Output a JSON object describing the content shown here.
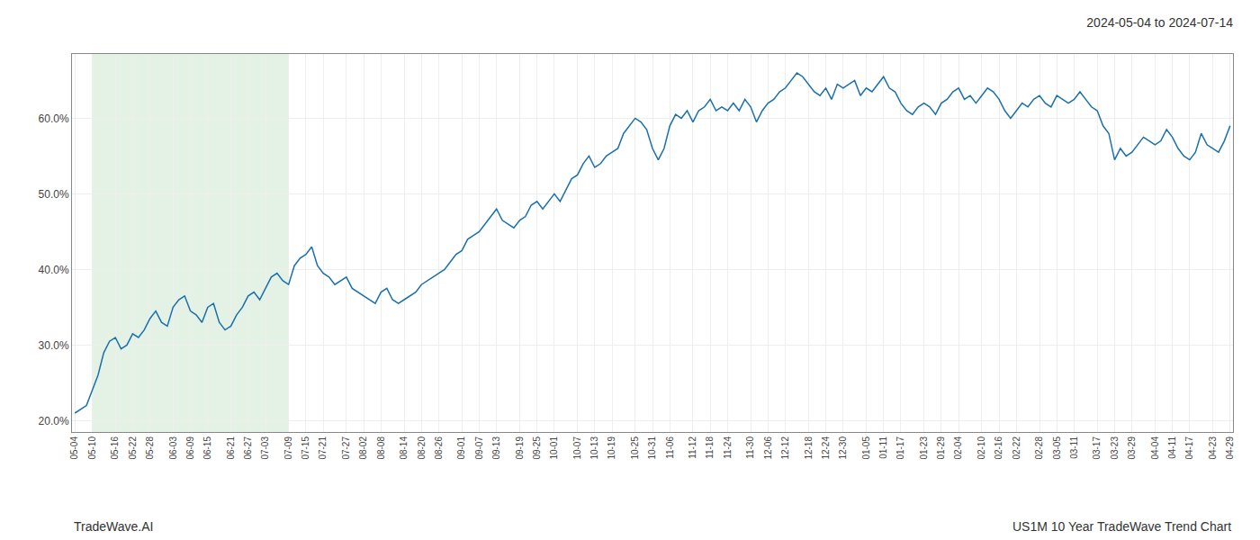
{
  "chart_data": {
    "type": "line",
    "title": "2024-05-04 to 2024-07-14",
    "annotations": [
      "TradeWave.AI",
      "US1M 10 Year TradeWave Trend Chart"
    ],
    "categories": [
      "05-04",
      null,
      null,
      "05-10",
      null,
      null,
      null,
      "05-16",
      null,
      null,
      "05-22",
      null,
      null,
      "05-28",
      null,
      null,
      null,
      "06-03",
      null,
      null,
      "06-09",
      null,
      null,
      "06-15",
      null,
      null,
      null,
      "06-21",
      null,
      null,
      "06-27",
      null,
      null,
      "07-03",
      null,
      null,
      null,
      "07-09",
      null,
      null,
      "07-15",
      null,
      null,
      "07-21",
      null,
      null,
      null,
      "07-27",
      null,
      null,
      "08-02",
      null,
      null,
      "08-08",
      null,
      null,
      null,
      "08-14",
      null,
      null,
      "08-20",
      null,
      null,
      "08-26",
      null,
      null,
      null,
      "09-01",
      null,
      null,
      "09-07",
      null,
      null,
      "09-13",
      null,
      null,
      null,
      "09-19",
      null,
      null,
      "09-25",
      null,
      null,
      "10-01",
      null,
      null,
      null,
      "10-07",
      null,
      null,
      "10-13",
      null,
      null,
      "10-19",
      null,
      null,
      null,
      "10-25",
      null,
      null,
      "10-31",
      null,
      null,
      "11-06",
      null,
      null,
      null,
      "11-12",
      null,
      null,
      "11-18",
      null,
      null,
      "11-24",
      null,
      null,
      null,
      "11-30",
      null,
      null,
      "12-06",
      null,
      null,
      "12-12",
      null,
      null,
      null,
      "12-18",
      null,
      null,
      "12-24",
      null,
      null,
      "12-30",
      null,
      null,
      null,
      "01-05",
      null,
      null,
      "01-11",
      null,
      null,
      "01-17",
      null,
      null,
      null,
      "01-23",
      null,
      null,
      "01-29",
      null,
      null,
      "02-04",
      null,
      null,
      null,
      "02-10",
      null,
      null,
      "02-16",
      null,
      null,
      "02-22",
      null,
      null,
      null,
      "02-28",
      null,
      null,
      "03-05",
      null,
      null,
      "03-11",
      null,
      null,
      null,
      "03-17",
      null,
      null,
      "03-23",
      null,
      null,
      "03-29",
      null,
      null,
      null,
      "04-04",
      null,
      null,
      "04-11",
      null,
      null,
      "04-17",
      null,
      null,
      null,
      "04-23",
      null,
      null,
      "04-29"
    ],
    "series": [
      {
        "color": "#1a6faf",
        "values": [
          0.21,
          0.215,
          0.22,
          0.24,
          0.26,
          0.29,
          0.305,
          0.31,
          0.295,
          0.3,
          0.315,
          0.31,
          0.32,
          0.335,
          0.345,
          0.33,
          0.325,
          0.35,
          0.36,
          0.365,
          0.345,
          0.34,
          0.33,
          0.35,
          0.355,
          0.33,
          0.32,
          0.325,
          0.34,
          0.35,
          0.365,
          0.37,
          0.36,
          0.375,
          0.39,
          0.395,
          0.385,
          0.38,
          0.405,
          0.415,
          0.42,
          0.43,
          0.405,
          0.395,
          0.39,
          0.38,
          0.385,
          0.39,
          0.375,
          0.37,
          0.365,
          0.36,
          0.355,
          0.37,
          0.375,
          0.36,
          0.355,
          0.36,
          0.365,
          0.37,
          0.38,
          0.385,
          0.39,
          0.395,
          0.4,
          0.41,
          0.42,
          0.425,
          0.44,
          0.445,
          0.45,
          0.46,
          0.47,
          0.48,
          0.465,
          0.46,
          0.455,
          0.465,
          0.47,
          0.485,
          0.49,
          0.48,
          0.49,
          0.5,
          0.49,
          0.505,
          0.52,
          0.525,
          0.54,
          0.55,
          0.535,
          0.54,
          0.55,
          0.555,
          0.56,
          0.58,
          0.59,
          0.6,
          0.595,
          0.585,
          0.56,
          0.545,
          0.56,
          0.59,
          0.605,
          0.6,
          0.61,
          0.595,
          0.61,
          0.615,
          0.625,
          0.61,
          0.615,
          0.61,
          0.62,
          0.61,
          0.625,
          0.615,
          0.595,
          0.61,
          0.62,
          0.625,
          0.635,
          0.64,
          0.65,
          0.66,
          0.655,
          0.645,
          0.635,
          0.63,
          0.64,
          0.625,
          0.645,
          0.64,
          0.645,
          0.65,
          0.63,
          0.64,
          0.635,
          0.645,
          0.655,
          0.64,
          0.635,
          0.62,
          0.61,
          0.605,
          0.615,
          0.62,
          0.615,
          0.605,
          0.62,
          0.625,
          0.635,
          0.64,
          0.625,
          0.63,
          0.62,
          0.63,
          0.64,
          0.635,
          0.625,
          0.61,
          0.6,
          0.61,
          0.62,
          0.615,
          0.625,
          0.63,
          0.62,
          0.615,
          0.63,
          0.625,
          0.62,
          0.625,
          0.635,
          0.625,
          0.615,
          0.61,
          0.59,
          0.58,
          0.545,
          0.56,
          0.55,
          0.555,
          0.565,
          0.575,
          0.57,
          0.565,
          0.57,
          0.585,
          0.575,
          0.56,
          0.55,
          0.545,
          0.555,
          0.58,
          0.565,
          0.56,
          0.555,
          0.57,
          0.59
        ]
      }
    ],
    "shade": {
      "from": "05-10",
      "to": "07-09",
      "color": "#c8e6c9"
    },
    "ylim": [
      0.185,
      0.685
    ],
    "yticks": [
      {
        "value": 0.2,
        "label": "20.0%"
      },
      {
        "value": 0.3,
        "label": "30.0%"
      },
      {
        "value": 0.4,
        "label": "40.0%"
      },
      {
        "value": 0.5,
        "label": "50.0%"
      },
      {
        "value": 0.6,
        "label": "60.0%"
      }
    ],
    "grid": true
  }
}
